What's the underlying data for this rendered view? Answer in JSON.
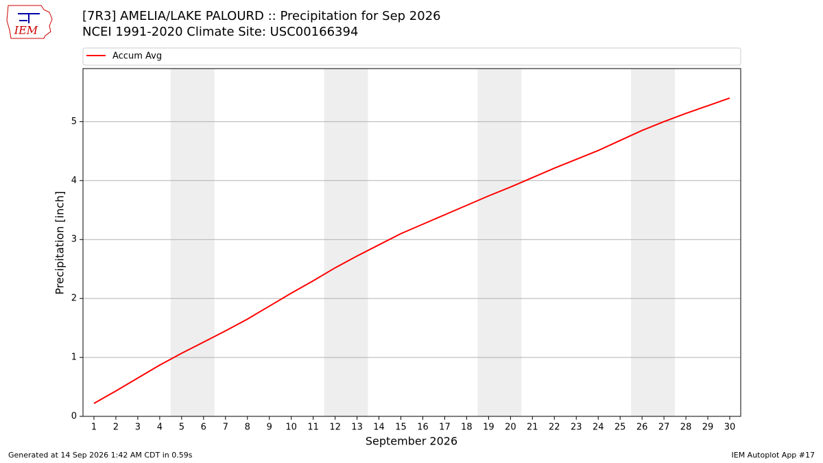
{
  "chart_data": {
    "type": "line",
    "title": "[7R3] AMELIA/LAKE PALOURD :: Precipitation for Sep 2026",
    "subtitle": "NCEI 1991-2020 Climate Site: USC00166394",
    "logo_text": "IEM",
    "x_label": "September 2026",
    "y_label": "Precipitation [inch]",
    "footer_left": "Generated at 14 Sep 2026 1:42 AM CDT in 0.59s",
    "footer_right": "IEM Autoplot App #17",
    "x": [
      1,
      2,
      3,
      4,
      5,
      6,
      7,
      8,
      9,
      10,
      11,
      12,
      13,
      14,
      15,
      16,
      17,
      18,
      19,
      20,
      21,
      22,
      23,
      24,
      25,
      26,
      27,
      28,
      29,
      30
    ],
    "series": [
      {
        "name": "Accum Avg",
        "color": "#ff0000",
        "values": [
          0.22,
          0.43,
          0.65,
          0.87,
          1.07,
          1.26,
          1.45,
          1.65,
          1.87,
          2.09,
          2.3,
          2.52,
          2.72,
          2.91,
          3.1,
          3.26,
          3.42,
          3.58,
          3.74,
          3.89,
          4.05,
          4.21,
          4.36,
          4.51,
          4.68,
          4.85,
          5.0,
          5.14,
          5.27,
          5.4
        ]
      }
    ],
    "weekend_spans": [
      [
        4.5,
        6.5
      ],
      [
        11.5,
        13.5
      ],
      [
        18.5,
        20.5
      ],
      [
        25.5,
        27.5
      ]
    ],
    "weekend_color": "#eeeeee",
    "xlim": [
      0.5,
      30.5
    ],
    "xticks": [
      1,
      2,
      3,
      4,
      5,
      6,
      7,
      8,
      9,
      10,
      11,
      12,
      13,
      14,
      15,
      16,
      17,
      18,
      19,
      20,
      21,
      22,
      23,
      24,
      25,
      26,
      27,
      28,
      29,
      30
    ],
    "ylim": [
      0,
      5.9
    ],
    "yticks": [
      0,
      1,
      2,
      3,
      4,
      5
    ],
    "grid": true,
    "legend": "top"
  }
}
